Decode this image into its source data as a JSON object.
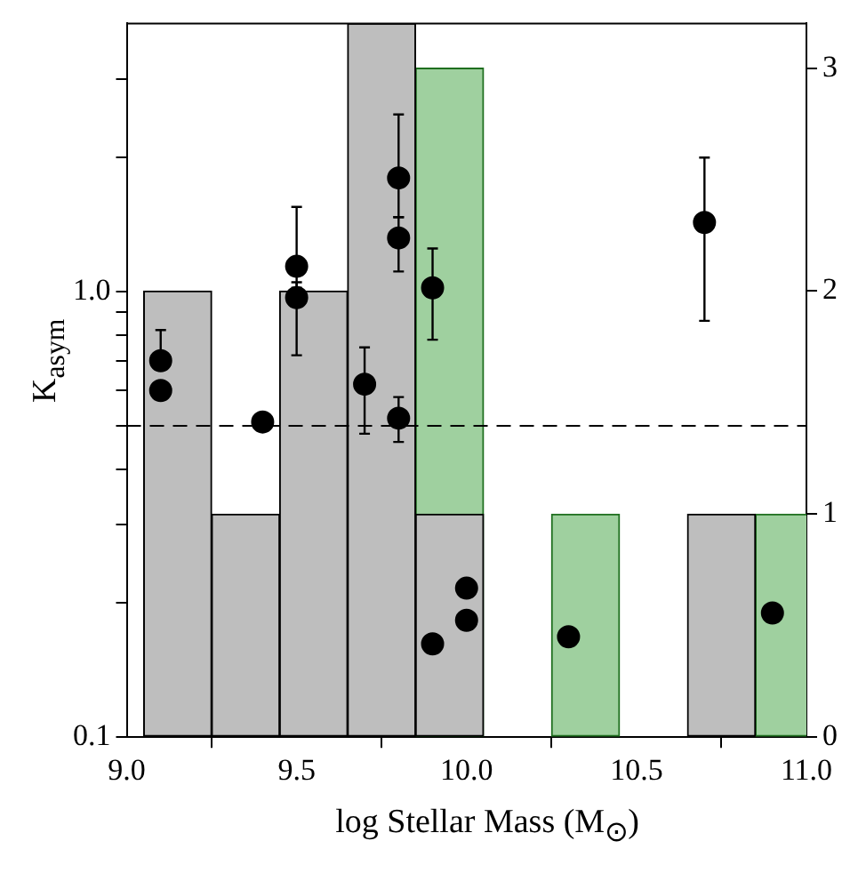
{
  "chart_data": {
    "type": "histogram",
    "xlabel": "log Stellar Mass (M$_{⊙}$)",
    "ylabel": "K$_{asym}$",
    "bins": [
      9.05,
      9.25,
      9.45,
      9.65,
      9.85,
      10.05,
      10.25,
      10.45,
      10.65,
      10.85,
      11.05
    ],
    "xlim": [
      9.0,
      11.0
    ],
    "xticks": [
      {
        "value": 9.0,
        "label": "9.0"
      },
      {
        "value": 9.5,
        "label": "9.5"
      },
      {
        "value": 10.0,
        "label": "10.0"
      },
      {
        "value": 10.5,
        "label": "10.5"
      },
      {
        "value": 11.0,
        "label": "11.0"
      }
    ],
    "ylim": [
      0.1,
      4
    ],
    "yticks": [
      0.1,
      {
        "value": 0.2,
        "label": null
      },
      {
        "value": 0.3,
        "label": null
      },
      {
        "value": 0.4,
        "label": null
      },
      {
        "value": 0.5,
        "label": null
      },
      {
        "value": 0.6,
        "label": null
      },
      {
        "value": 0.7,
        "label": null
      },
      {
        "value": 0.8,
        "label": null
      },
      {
        "value": 0.9,
        "label": null
      },
      {
        "value": 1,
        "label": "1.0"
      },
      {
        "value": 2,
        "label": null
      },
      {
        "value": 3,
        "label": null
      }
    ],
    "y2lim": [
      0,
      3.2
    ],
    "y2ticks": [
      0,
      1,
      2,
      3
    ],
    "log": "y",
    "ref_lines": [
      {
        "axis": "y",
        "value": 0.5,
        "line_style": "dashed",
        "color": "#000000"
      }
    ],
    "series": [
      {
        "type": "histogram",
        "axis": "y2",
        "color": "#bebebe",
        "values": [
          2,
          1,
          2,
          3.2,
          1,
          0,
          0,
          0,
          1,
          0
        ]
      },
      {
        "type": "histogram",
        "axis": "y2",
        "color": "#9fd09f",
        "values": [
          0,
          0,
          0,
          0,
          3,
          0,
          1,
          0,
          0,
          1
        ]
      },
      {
        "type": "scatter",
        "color": "#000000",
        "marker": "circle",
        "x": [
          9.1,
          9.1,
          9.4,
          9.5,
          9.5,
          9.7,
          9.8,
          9.8,
          9.8,
          9.9,
          9.9,
          10.0,
          10.0,
          10.3,
          10.7,
          10.9
        ],
        "values": [
          0.7,
          0.6,
          0.51,
          1.14,
          0.97,
          0.62,
          1.8,
          1.32,
          0.52,
          1.02,
          0.162,
          0.216,
          0.183,
          0.168,
          1.43,
          0.19
        ],
        "errors": [
          [
            0.7,
            0.82
          ],
          null,
          null,
          [
            1.02,
            1.55
          ],
          [
            0.72,
            1.05
          ],
          [
            0.48,
            0.75
          ],
          [
            1.47,
            2.5
          ],
          [
            1.11,
            1.47
          ],
          [
            0.46,
            0.58
          ],
          [
            0.78,
            1.25
          ],
          null,
          null,
          null,
          null,
          [
            0.86,
            2.0
          ],
          null
        ]
      }
    ]
  }
}
